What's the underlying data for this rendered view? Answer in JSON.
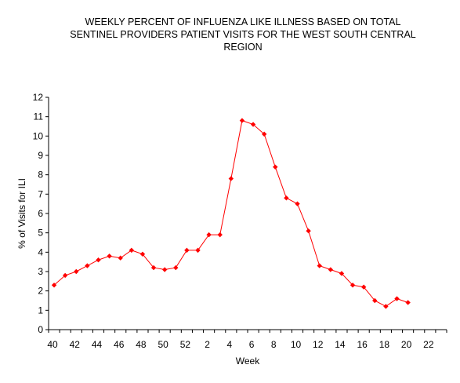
{
  "chart_data": {
    "type": "line",
    "title_lines": [
      "WEEKLY PERCENT OF INFLUENZA LIKE ILLNESS BASED ON TOTAL",
      "SENTINEL PROVIDERS PATIENT VISITS FOR THE WEST SOUTH CENTRAL",
      "REGION"
    ],
    "xlabel": "Week",
    "ylabel": "% of Visits for ILI",
    "ylim": [
      0,
      12
    ],
    "yticks": [
      0,
      1,
      2,
      3,
      4,
      5,
      6,
      7,
      8,
      9,
      10,
      11,
      12
    ],
    "xtick_labels": [
      "40",
      "42",
      "44",
      "46",
      "48",
      "50",
      "52",
      "2",
      "4",
      "6",
      "8",
      "10",
      "12",
      "14",
      "16",
      "18",
      "20",
      "22"
    ],
    "x": [
      "40",
      "41",
      "42",
      "43",
      "44",
      "45",
      "46",
      "47",
      "48",
      "49",
      "50",
      "51",
      "52",
      "1",
      "2",
      "3",
      "4",
      "5",
      "6",
      "7",
      "8",
      "9",
      "10",
      "11",
      "12",
      "13",
      "14",
      "15",
      "16",
      "17",
      "18",
      "19",
      "20"
    ],
    "series": [
      {
        "values": [
          2.3,
          2.8,
          3.0,
          3.3,
          3.6,
          3.8,
          3.7,
          4.1,
          3.9,
          3.2,
          3.1,
          3.2,
          4.1,
          4.1,
          4.9,
          4.9,
          7.8,
          10.8,
          10.6,
          10.1,
          8.4,
          6.8,
          6.5,
          5.1,
          3.3,
          3.1,
          2.9,
          2.3,
          2.2,
          1.5,
          1.2,
          1.6,
          1.4
        ],
        "color": "#ff0000",
        "marker": "diamond"
      }
    ],
    "grid": false,
    "legend": "none"
  }
}
